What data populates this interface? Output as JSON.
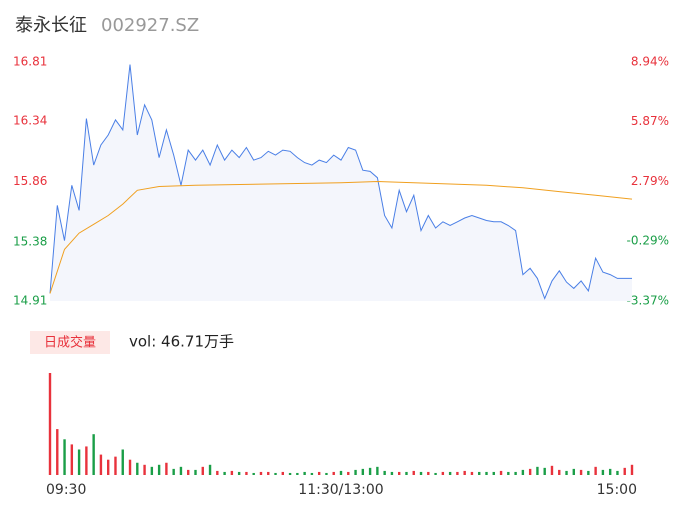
{
  "chart_data": {
    "type": "intraday",
    "title": "泰永长征",
    "subtitle": "002927.SZ",
    "xlim": [
      0,
      240
    ],
    "xticks": [
      {
        "value": 0,
        "label": "09:30"
      },
      {
        "value": 120,
        "label": "11:30/13:00"
      },
      {
        "value": 240,
        "label": "15:00"
      }
    ],
    "ylim": [
      14.91,
      16.81
    ],
    "yticks": [
      16.81,
      16.34,
      15.86,
      15.38,
      14.91
    ],
    "y2lim": [
      -3.37,
      8.94
    ],
    "y2ticks": [
      {
        "value": 8.94,
        "label": "8.94%"
      },
      {
        "value": 5.87,
        "label": "5.87%"
      },
      {
        "value": 2.79,
        "label": "2.79%"
      },
      {
        "value": -0.29,
        "label": "-0.29%"
      },
      {
        "value": -3.37,
        "label": "-3.37%"
      }
    ],
    "up_color": "#e8323c",
    "flat_color": "#888888",
    "down_color": "#1a9e47",
    "series": [
      {
        "name": "price",
        "color": "#4a7fe6",
        "x": [
          0,
          3,
          6,
          9,
          12,
          15,
          18,
          21,
          24,
          27,
          30,
          33,
          36,
          39,
          42,
          45,
          48,
          51,
          54,
          57,
          60,
          63,
          66,
          69,
          72,
          75,
          78,
          81,
          84,
          87,
          90,
          93,
          96,
          99,
          102,
          105,
          108,
          111,
          114,
          117,
          120,
          123,
          126,
          129,
          132,
          135,
          138,
          141,
          144,
          147,
          150,
          153,
          156,
          159,
          162,
          165,
          168,
          171,
          174,
          177,
          180,
          183,
          186,
          189,
          192,
          195,
          198,
          201,
          204,
          207,
          210,
          213,
          216,
          219,
          222,
          225,
          228,
          231,
          234,
          237,
          240
        ],
        "values": [
          14.97,
          15.67,
          15.39,
          15.83,
          15.63,
          16.36,
          15.99,
          16.15,
          16.23,
          16.35,
          16.27,
          16.79,
          16.23,
          16.47,
          16.35,
          16.05,
          16.27,
          16.07,
          15.83,
          16.11,
          16.03,
          16.11,
          15.99,
          16.15,
          16.03,
          16.11,
          16.05,
          16.13,
          16.03,
          16.05,
          16.1,
          16.07,
          16.11,
          16.1,
          16.05,
          16.01,
          15.99,
          16.03,
          16.01,
          16.07,
          16.03,
          16.13,
          16.11,
          15.95,
          15.94,
          15.89,
          15.59,
          15.49,
          15.79,
          15.62,
          15.75,
          15.47,
          15.59,
          15.49,
          15.54,
          15.51,
          15.54,
          15.57,
          15.59,
          15.57,
          15.55,
          15.54,
          15.54,
          15.51,
          15.47,
          15.12,
          15.17,
          15.09,
          14.93,
          15.07,
          15.15,
          15.06,
          15.01,
          15.07,
          14.99,
          15.25,
          15.14,
          15.12,
          15.09,
          15.09,
          15.09
        ]
      },
      {
        "name": "average",
        "color": "#f0a020",
        "x": [
          0,
          6,
          12,
          18,
          24,
          30,
          36,
          45,
          60,
          90,
          120,
          135,
          150,
          180,
          195,
          210,
          225,
          240
        ],
        "values": [
          14.97,
          15.32,
          15.45,
          15.52,
          15.59,
          15.68,
          15.79,
          15.82,
          15.83,
          15.84,
          15.85,
          15.86,
          15.85,
          15.83,
          15.81,
          15.78,
          15.75,
          15.72
        ]
      }
    ],
    "volume_title": "日成交量",
    "volume_label": "vol: 46.71万手",
    "volume_ylim": [
      0,
      100
    ],
    "volume": [
      100,
      45,
      35,
      30,
      25,
      28,
      40,
      20,
      15,
      18,
      25,
      15,
      12,
      10,
      8,
      10,
      12,
      6,
      8,
      5,
      5,
      8,
      10,
      4,
      3,
      4,
      3,
      3,
      2,
      3,
      3,
      2,
      3,
      2,
      2,
      3,
      2,
      3,
      2,
      3,
      4,
      3,
      5,
      6,
      7,
      8,
      4,
      3,
      3,
      3,
      4,
      3,
      3,
      2,
      3,
      3,
      3,
      4,
      3,
      3,
      3,
      3,
      4,
      3,
      3,
      5,
      6,
      8,
      7,
      9,
      5,
      4,
      6,
      5,
      4,
      8,
      5,
      6,
      4,
      7,
      10
    ]
  }
}
